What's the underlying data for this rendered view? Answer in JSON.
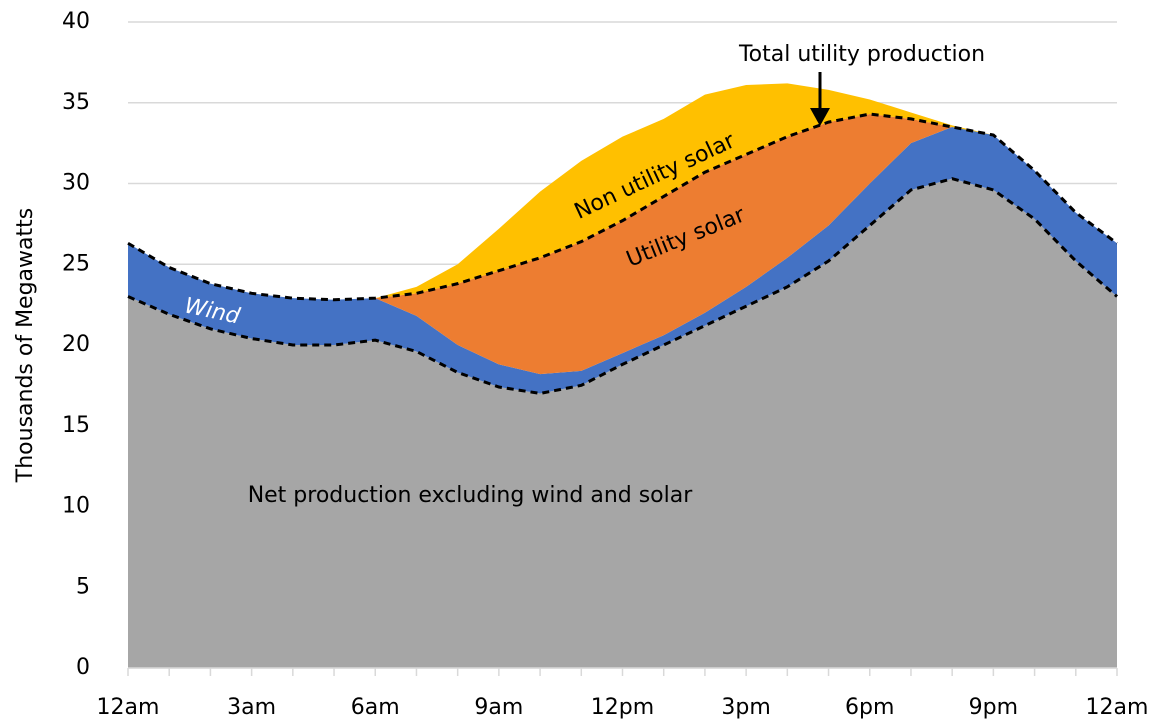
{
  "chart_data": {
    "type": "stacked_area",
    "y_label": "Thousands of Megawatts",
    "categories": [
      "12am",
      null,
      null,
      "3am",
      null,
      null,
      "6am",
      null,
      null,
      "9am",
      null,
      null,
      "12pm",
      null,
      null,
      "3pm",
      null,
      null,
      "6pm",
      null,
      null,
      "9pm",
      null,
      null,
      "12am"
    ],
    "series": [
      {
        "name": "Net production excluding wind and solar",
        "color": "#a6a6a6",
        "values": [
          23.0,
          21.9,
          21.0,
          20.4,
          20.0,
          20.0,
          20.3,
          19.6,
          18.3,
          17.4,
          17.0,
          17.5,
          18.8,
          20.0,
          21.2,
          22.4,
          23.6,
          25.2,
          27.4,
          29.6,
          30.3,
          29.6,
          27.8,
          25.2,
          23.0
        ]
      },
      {
        "name": "Wind",
        "color": "#4472c4",
        "values": [
          3.3,
          2.9,
          2.8,
          2.8,
          2.9,
          2.8,
          2.6,
          2.2,
          1.7,
          1.4,
          1.2,
          0.9,
          0.7,
          0.6,
          0.8,
          1.2,
          1.8,
          2.2,
          2.6,
          2.9,
          3.2,
          3.4,
          3.0,
          3.0,
          3.3
        ]
      },
      {
        "name": "Utility solar",
        "color": "#ed7d31",
        "values": [
          0,
          0,
          0,
          0,
          0,
          0,
          0,
          1.4,
          3.8,
          5.8,
          7.2,
          8.0,
          8.2,
          8.6,
          8.7,
          8.2,
          7.5,
          6.4,
          4.3,
          1.5,
          0,
          0,
          0,
          0,
          0
        ]
      },
      {
        "name": "Non utility solar",
        "color": "#ffc000",
        "values": [
          0,
          0,
          0,
          0,
          0,
          0,
          0,
          0.4,
          1.2,
          2.6,
          4.1,
          5.0,
          5.2,
          4.8,
          4.8,
          4.3,
          3.3,
          2.0,
          0.9,
          0.4,
          0.1,
          0,
          0,
          0,
          0
        ]
      }
    ],
    "annotation": "Total utility production",
    "ylim": [
      0,
      40
    ],
    "yticks": [
      0,
      5,
      10,
      15,
      20,
      25,
      30,
      35,
      40
    ],
    "grid": true
  }
}
